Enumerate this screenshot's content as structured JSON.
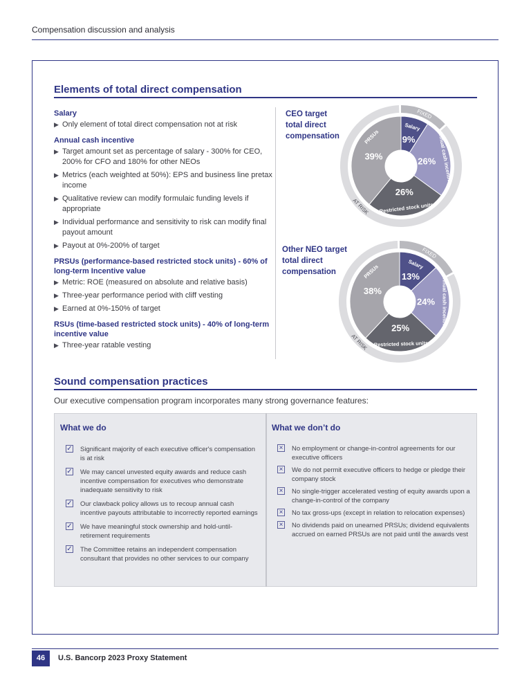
{
  "header": {
    "section": "Compensation discussion and analysis"
  },
  "elements": {
    "title": "Elements of total direct compensation",
    "groups": [
      {
        "heading": "Salary",
        "bullets": [
          "Only element of total direct compensation not at risk"
        ]
      },
      {
        "heading": "Annual cash incentive",
        "bullets": [
          "Target amount set as percentage of salary - 300% for CEO, 200% for CFO and 180% for other NEOs",
          "Metrics (each weighted at 50%): EPS and business line pretax income",
          "Qualitative review can modify formulaic funding levels if appropriate",
          "Individual performance and sensitivity to risk can modify final payout amount",
          "Payout at 0%-200% of target"
        ]
      },
      {
        "heading": "PRSUs (performance-based restricted stock units) - 60% of long-term Incentive value",
        "bullets": [
          "Metric: ROE (measured on absolute and relative basis)",
          "Three-year performance period with cliff vesting",
          "Earned at 0%-150% of target"
        ]
      },
      {
        "heading": "RSUs (time-based restricted stock units) - 40% of long-term incentive value",
        "bullets": [
          "Three-year ratable vesting"
        ]
      }
    ]
  },
  "chart_data": [
    {
      "type": "pie",
      "title": "CEO target total direct compensation",
      "categories": [
        "Salary",
        "Annual cash incentive",
        "Restricted stock units",
        "PRSUs"
      ],
      "values": [
        9,
        26,
        26,
        39
      ],
      "labels": [
        "9%",
        "26%",
        "26%",
        "39%"
      ],
      "ring": [
        "FIXED",
        "AT RISK"
      ],
      "colors": [
        "#4f5189",
        "#9a98c2",
        "#64656d",
        "#a6a5ab"
      ]
    },
    {
      "type": "pie",
      "title": "Other NEO target total direct compensation",
      "categories": [
        "Salary",
        "Annual cash incentive",
        "Restricted stock units",
        "PRSUs"
      ],
      "values": [
        13,
        24,
        25,
        38
      ],
      "labels": [
        "13%",
        "24%",
        "25%",
        "38%"
      ],
      "ring": [
        "FIXED",
        "AT RISK"
      ],
      "colors": [
        "#4f5189",
        "#9a98c2",
        "#64656d",
        "#a6a5ab"
      ]
    }
  ],
  "chart_labels": [
    {
      "l1": "CEO target",
      "l2": "total direct",
      "l3": "compensation"
    },
    {
      "l1": "Other NEO target",
      "l2": "total direct",
      "l3": "compensation"
    }
  ],
  "practices": {
    "title": "Sound compensation practices",
    "intro": "Our executive compensation program incorporates many strong governance features:",
    "do_heading": "What we do",
    "do_items": [
      "Significant majority of each executive officer's compensation is at risk",
      "We may cancel unvested equity awards and reduce cash incentive compensation for executives who demonstrate inadequate sensitivity to risk",
      "Our clawback policy allows us to recoup annual cash incentive payouts attributable to incorrectly reported earnings",
      "We have meaningful stock ownership and hold-until-retirement requirements",
      "The Committee retains an independent compensation consultant that provides no other services to our company"
    ],
    "dont_heading": "What we don’t do",
    "dont_items": [
      "No employment or change-in-control agreements for our executive officers",
      "We do not permit executive officers to hedge or pledge their company stock",
      "No single-trigger accelerated vesting of equity awards upon a change-in-control of the company",
      "No tax gross-ups (except in relation to relocation expenses)",
      "No dividends paid on unearned PRSUs; dividend equivalents accrued on earned PRSUs are not paid until the awards vest"
    ]
  },
  "footer": {
    "page": "46",
    "title": "U.S. Bancorp 2023 Proxy Statement"
  },
  "icons": {
    "do": "checkbox-check-icon",
    "dont": "checkbox-x-icon",
    "bullet": "triangle-right-icon"
  }
}
